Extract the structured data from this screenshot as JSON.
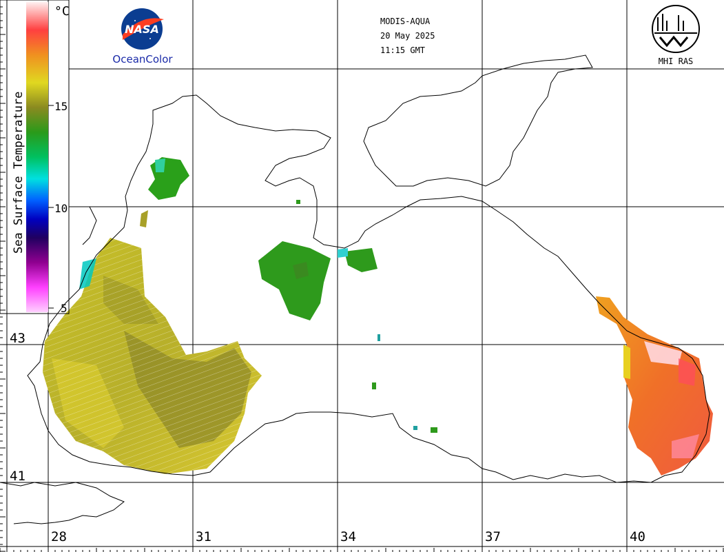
{
  "header": {
    "satellite": "MODIS-AQUA",
    "date": "20 May 2025",
    "time": "11:15 GMT"
  },
  "logos": {
    "nasa_text": "NASA",
    "oceancolor": "OceanColor",
    "mhi_ras": "MHI RAS"
  },
  "colorbar": {
    "title": "Sea Surface Temperature",
    "unit": "°C",
    "ticks": [
      "15",
      "10",
      "5"
    ]
  },
  "axes": {
    "lat_labels": [
      "43",
      "41"
    ],
    "lon_labels": [
      "28",
      "31",
      "34",
      "37",
      "40"
    ]
  },
  "colors": {
    "cold": "#ff80ff",
    "cyan": "#00e0e0",
    "green": "#2a9a1a",
    "olive": "#8a8a20",
    "yellow": "#d8d020",
    "orange": "#f07020",
    "hot": "#ff4a60"
  }
}
